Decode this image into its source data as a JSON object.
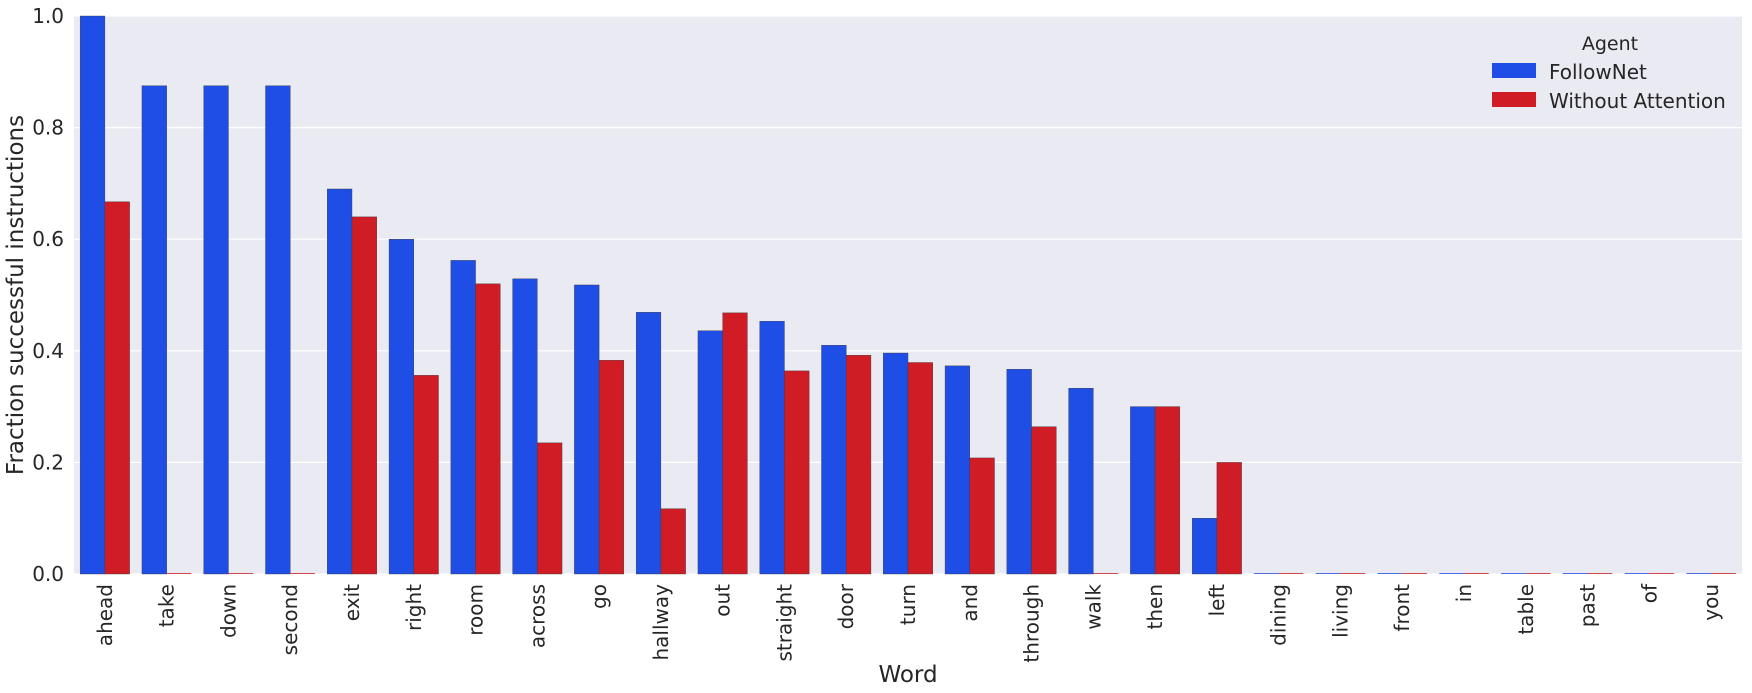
{
  "chart_data": {
    "type": "bar",
    "title": "",
    "xlabel": "Word",
    "ylabel": "Fraction successful instructions",
    "ylim": [
      0,
      1.0
    ],
    "yticks": [
      "0.0",
      "0.2",
      "0.4",
      "0.6",
      "0.8",
      "1.0"
    ],
    "grid": true,
    "legend": {
      "title": "Agent",
      "placement": "top-right"
    },
    "categories": [
      "ahead",
      "take",
      "down",
      "second",
      "exit",
      "right",
      "room",
      "across",
      "go",
      "hallway",
      "out",
      "straight",
      "door",
      "turn",
      "and",
      "through",
      "walk",
      "then",
      "left",
      "dining",
      "living",
      "front",
      "in",
      "table",
      "past",
      "of",
      "you"
    ],
    "series": [
      {
        "name": "FollowNet",
        "color": "#1f4ee6",
        "values": [
          1.0,
          0.875,
          0.875,
          0.875,
          0.69,
          0.6,
          0.562,
          0.529,
          0.518,
          0.469,
          0.436,
          0.453,
          0.41,
          0.396,
          0.373,
          0.367,
          0.333,
          0.3,
          0.1,
          0,
          0,
          0,
          0,
          0,
          0,
          0,
          0
        ]
      },
      {
        "name": "Without Attention",
        "color": "#d01c24",
        "values": [
          0.667,
          0,
          0,
          0,
          0.64,
          0.356,
          0.52,
          0.235,
          0.383,
          0.117,
          0.468,
          0.364,
          0.392,
          0.379,
          0.208,
          0.264,
          0,
          0.3,
          0.2,
          0,
          0,
          0,
          0,
          0,
          0,
          0,
          0
        ]
      }
    ]
  }
}
